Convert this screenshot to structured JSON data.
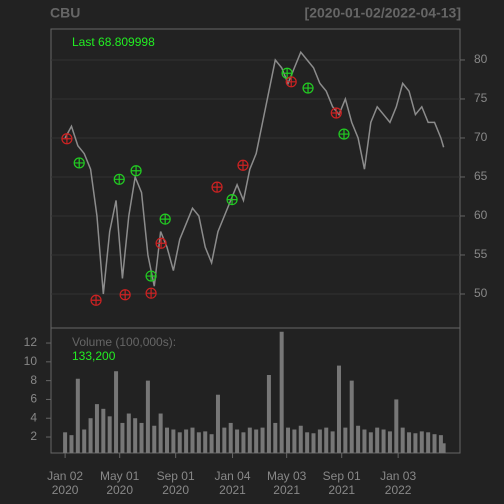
{
  "chart_data": [
    {
      "type": "line",
      "title": "CBU",
      "subtitle": "[2020-01-02/2022-04-13]",
      "annotation": "Last 68.809998",
      "x": [
        "2020-01-02",
        "2020-01-16",
        "2020-01-30",
        "2020-02-13",
        "2020-02-27",
        "2020-03-12",
        "2020-03-26",
        "2020-04-09",
        "2020-04-23",
        "2020-05-07",
        "2020-05-21",
        "2020-06-04",
        "2020-06-18",
        "2020-07-02",
        "2020-07-16",
        "2020-07-30",
        "2020-08-13",
        "2020-08-27",
        "2020-09-10",
        "2020-09-24",
        "2020-10-08",
        "2020-10-22",
        "2020-11-05",
        "2020-11-19",
        "2020-12-03",
        "2020-12-17",
        "2020-12-31",
        "2021-01-14",
        "2021-01-28",
        "2021-02-11",
        "2021-02-25",
        "2021-03-11",
        "2021-03-25",
        "2021-04-08",
        "2021-04-22",
        "2021-05-06",
        "2021-05-20",
        "2021-06-03",
        "2021-06-17",
        "2021-07-01",
        "2021-07-15",
        "2021-07-29",
        "2021-08-12",
        "2021-08-26",
        "2021-09-09",
        "2021-09-23",
        "2021-10-07",
        "2021-10-21",
        "2021-11-04",
        "2021-11-18",
        "2021-12-02",
        "2021-12-16",
        "2021-12-30",
        "2022-01-13",
        "2022-01-27",
        "2022-02-10",
        "2022-02-24",
        "2022-03-10",
        "2022-03-24",
        "2022-04-07",
        "2022-04-13"
      ],
      "values": [
        70,
        71.5,
        69,
        68,
        66,
        60,
        50,
        58,
        62,
        52,
        60,
        65,
        63,
        55,
        51,
        58,
        56,
        53,
        57,
        59,
        61,
        60,
        56,
        54,
        58,
        60,
        62,
        64,
        62,
        66,
        68,
        72,
        76,
        80,
        79,
        77,
        79,
        81,
        80,
        79,
        77,
        76,
        74,
        73,
        75,
        72,
        70,
        66,
        72,
        74,
        73,
        72,
        74,
        77,
        76,
        73,
        74,
        72,
        72,
        70,
        68.81
      ],
      "color": "#8c8c8c",
      "markers": [
        {
          "color": "#22cc22",
          "x": [
            "2020-02-02",
            "2020-04-30",
            "2020-06-06",
            "2020-07-09",
            "2020-08-09",
            "2021-01-03",
            "2021-05-04",
            "2021-06-19",
            "2021-09-06"
          ],
          "values": [
            66.8,
            64.7,
            65.8,
            52.3,
            59.6,
            62.1,
            78.3,
            76.4,
            70.5
          ]
        },
        {
          "color": "#cc2222",
          "x": [
            "2020-01-06",
            "2020-03-10",
            "2020-05-13",
            "2020-07-09",
            "2020-07-31",
            "2020-12-01",
            "2021-01-27",
            "2021-05-13",
            "2021-08-20"
          ],
          "values": [
            69.9,
            49.2,
            49.9,
            50.1,
            56.5,
            63.7,
            66.5,
            77.2,
            73.2
          ]
        }
      ],
      "ylim": [
        45.64,
        83.97
      ],
      "yticks": [
        50,
        55,
        60,
        65,
        70,
        75,
        80
      ],
      "grid": true
    },
    {
      "type": "bar",
      "title": "Volume (100,000s):",
      "annotation": "133,200",
      "x": [
        "2020-01-02",
        "2020-01-16",
        "2020-01-30",
        "2020-02-13",
        "2020-02-27",
        "2020-03-12",
        "2020-03-26",
        "2020-04-09",
        "2020-04-23",
        "2020-05-07",
        "2020-05-21",
        "2020-06-04",
        "2020-06-18",
        "2020-07-02",
        "2020-07-16",
        "2020-07-30",
        "2020-08-13",
        "2020-08-27",
        "2020-09-10",
        "2020-09-24",
        "2020-10-08",
        "2020-10-22",
        "2020-11-05",
        "2020-11-19",
        "2020-12-03",
        "2020-12-17",
        "2020-12-31",
        "2021-01-14",
        "2021-01-28",
        "2021-02-11",
        "2021-02-25",
        "2021-03-11",
        "2021-03-25",
        "2021-04-08",
        "2021-04-22",
        "2021-05-06",
        "2021-05-20",
        "2021-06-03",
        "2021-06-17",
        "2021-07-01",
        "2021-07-15",
        "2021-07-29",
        "2021-08-12",
        "2021-08-26",
        "2021-09-09",
        "2021-09-23",
        "2021-10-07",
        "2021-10-21",
        "2021-11-04",
        "2021-11-18",
        "2021-12-02",
        "2021-12-16",
        "2021-12-30",
        "2022-01-13",
        "2022-01-27",
        "2022-02-10",
        "2022-02-24",
        "2022-03-10",
        "2022-03-24",
        "2022-04-07",
        "2022-04-13"
      ],
      "values": [
        2.5,
        2.2,
        8.2,
        2.8,
        4,
        5.5,
        5,
        4.2,
        9,
        3.5,
        4.5,
        4,
        3.5,
        8,
        3.2,
        4.5,
        3,
        2.8,
        2.5,
        2.8,
        3,
        2.5,
        2.6,
        2.3,
        6.5,
        3,
        3.5,
        2.8,
        2.5,
        3,
        2.8,
        3,
        8.6,
        3.5,
        13.2,
        3,
        2.8,
        3.2,
        2.5,
        2.4,
        2.8,
        3,
        2.6,
        9.6,
        3,
        8,
        3.2,
        2.8,
        2.5,
        3,
        2.8,
        2.6,
        6,
        3,
        2.5,
        2.4,
        2.6,
        2.5,
        2.3,
        2.2,
        1.332
      ],
      "color": "#777777",
      "ylim": [
        0.3,
        13.6
      ],
      "yticks": [
        2,
        4,
        6,
        8,
        10,
        12
      ],
      "xlim": [
        "2019-12-02",
        "2022-05-19"
      ],
      "xticks": [
        {
          "value": "2020-01-02",
          "label": "Jan 02\n2020"
        },
        {
          "value": "2020-05-01",
          "label": "May 01\n2020"
        },
        {
          "value": "2020-09-01",
          "label": "Sep 01\n2020"
        },
        {
          "value": "2021-01-04",
          "label": "Jan 04\n2021"
        },
        {
          "value": "2021-05-03",
          "label": "May 03\n2021"
        },
        {
          "value": "2021-09-01",
          "label": "Sep 01\n2021"
        },
        {
          "value": "2022-01-03",
          "label": "Jan 03\n2022"
        }
      ]
    }
  ]
}
